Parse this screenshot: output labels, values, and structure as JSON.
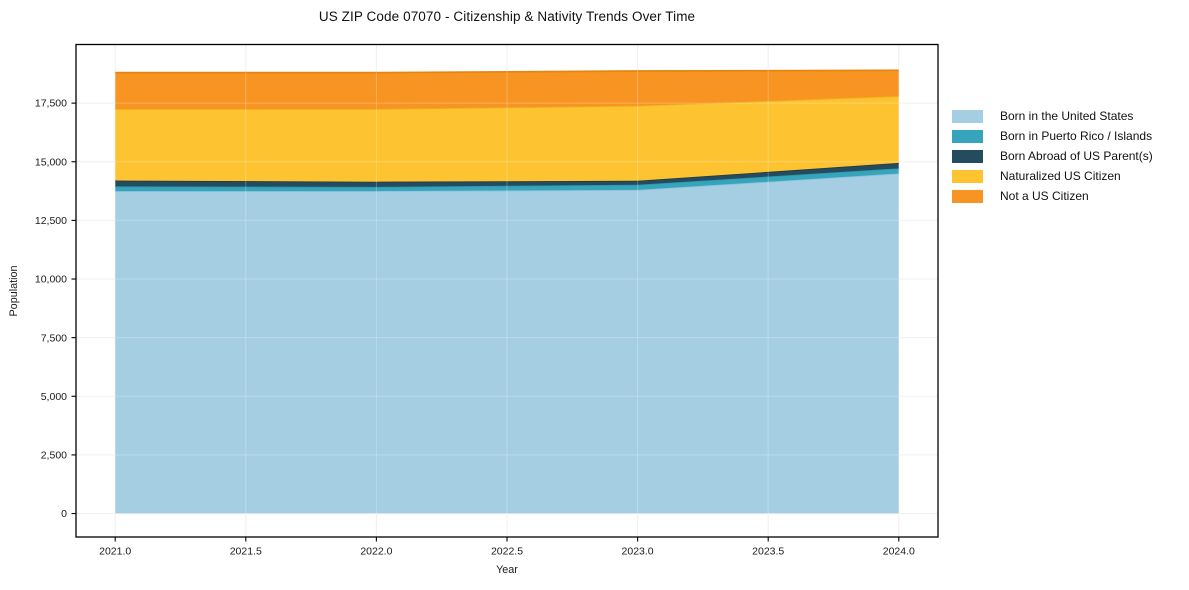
{
  "chart_data": {
    "type": "area",
    "stacked": true,
    "title": "US ZIP Code 07070 - Citizenship & Nativity Trends Over Time",
    "xlabel": "Year",
    "ylabel": "Population",
    "x": [
      2021,
      2022,
      2023,
      2024
    ],
    "series": [
      {
        "name": "Born in the United States",
        "color": "#a5cee3",
        "edge": "#8ec2dc",
        "values": [
          13750,
          13750,
          13800,
          14500
        ]
      },
      {
        "name": "Born in Puerto Rico / Islands",
        "color": "#36a5bb",
        "edge": "#2e96ab",
        "values": [
          200,
          180,
          220,
          220
        ]
      },
      {
        "name": "Born Abroad of US Parent(s)",
        "color": "#254b5e",
        "edge": "#1d3c4c",
        "values": [
          250,
          220,
          170,
          230
        ]
      },
      {
        "name": "Naturalized US Citizen",
        "color": "#fdc330",
        "edge": "#f0b11d",
        "values": [
          3050,
          3100,
          3200,
          2850
        ]
      },
      {
        "name": "Not a US Citizen",
        "color": "#f79422",
        "edge": "#e5850f",
        "values": [
          1550,
          1550,
          1480,
          1100
        ]
      }
    ],
    "totals": [
      18800,
      18800,
      18870,
      18900
    ],
    "xlim": [
      2020.85,
      2024.15
    ],
    "ylim": [
      -1000,
      20000
    ],
    "grid": true,
    "legend_position": "right",
    "x_ticks": {
      "values": [
        2021.0,
        2021.5,
        2022.0,
        2022.5,
        2023.0,
        2023.5,
        2024.0
      ],
      "labels": [
        "2021.0",
        "2021.5",
        "2022.0",
        "2022.5",
        "2023.0",
        "2023.5",
        "2024.0"
      ]
    },
    "y_ticks": {
      "values": [
        0,
        2500,
        5000,
        7500,
        10000,
        12500,
        15000,
        17500
      ],
      "labels": [
        "0",
        "2,500",
        "5,000",
        "7,500",
        "10,000",
        "12,500",
        "15,000",
        "17,500"
      ]
    }
  },
  "style_colors": {
    "spine": "#000000",
    "grid_under": "#ebebeb",
    "grid_over": "rgba(255,255,255,0.25)",
    "text": "#1a1a1a"
  }
}
